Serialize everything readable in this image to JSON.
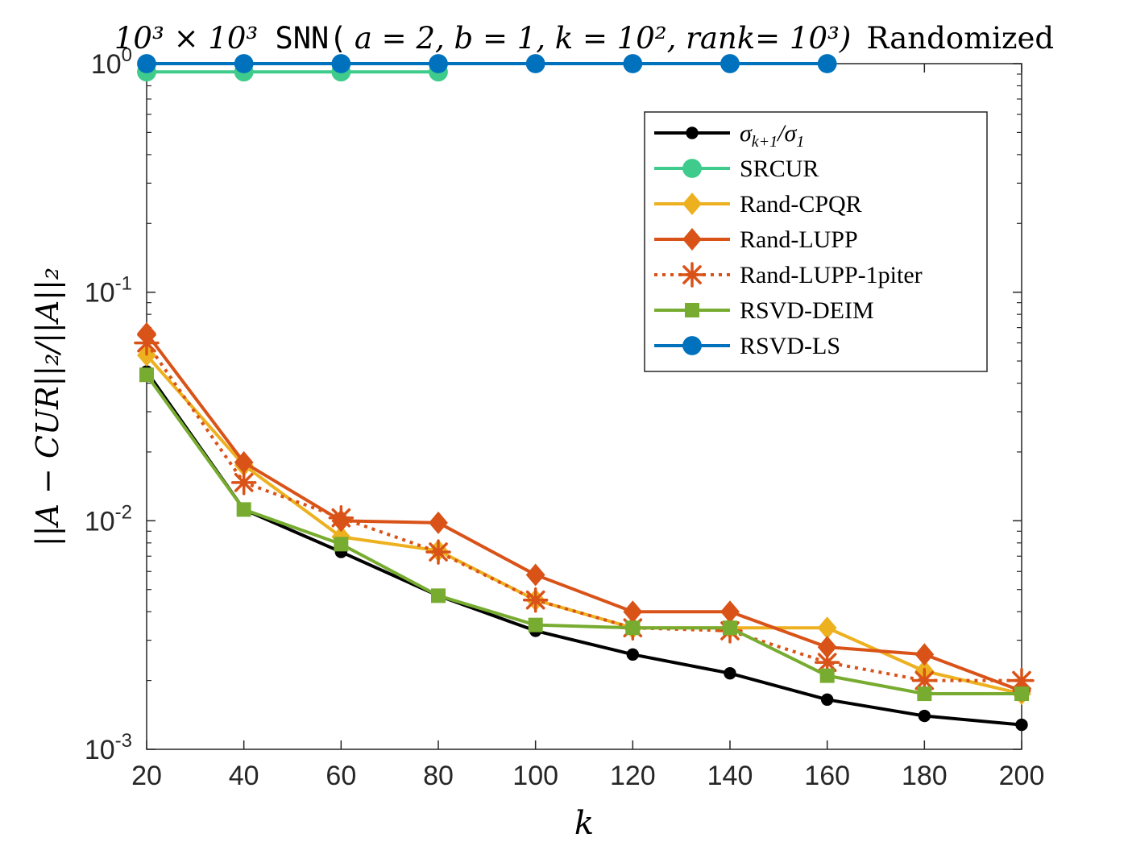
{
  "chart_data": {
    "type": "line",
    "title": {
      "prefix_math": "10³ × 10³",
      "function_name": "SNN(",
      "args_math": "a = 2, b = 1, k = 10², rank= 10³)",
      "suffix": "Randomized"
    },
    "xlabel": "k",
    "ylabel": "||A − CUR||₂/||A||₂",
    "y_scale": "log",
    "xlim": [
      20,
      200
    ],
    "ylim": [
      0.001,
      1
    ],
    "xticks": [
      "20",
      "40",
      "60",
      "80",
      "100",
      "120",
      "140",
      "160",
      "180",
      "200"
    ],
    "yticks": [
      {
        "base": "10",
        "exp": "0",
        "value": 1
      },
      {
        "base": "10",
        "exp": "-1",
        "value": 0.1
      },
      {
        "base": "10",
        "exp": "-2",
        "value": 0.01
      },
      {
        "base": "10",
        "exp": "-3",
        "value": 0.001
      }
    ],
    "x": [
      20,
      40,
      60,
      80,
      100,
      120,
      140,
      160,
      180,
      200
    ],
    "legend_position": "top-right",
    "grid": false,
    "series": [
      {
        "name": "σ_{k+1}/σ_1",
        "color": "#000000",
        "marker": "dot",
        "dash": "solid",
        "values": [
          0.045,
          0.0112,
          0.0073,
          0.0047,
          0.0033,
          0.0026,
          0.00215,
          0.00165,
          0.0014,
          0.00128
        ]
      },
      {
        "name": "SRCUR",
        "color": "#3fcb8b",
        "marker": "circle",
        "dash": "solid",
        "values": [
          0.92,
          0.92,
          0.92,
          0.92,
          null,
          null,
          null,
          null,
          null,
          null
        ]
      },
      {
        "name": "Rand-CPQR",
        "color": "#edb120",
        "marker": "diamond",
        "dash": "solid",
        "values": [
          0.053,
          0.0175,
          0.0085,
          0.0074,
          0.0045,
          0.0034,
          0.0034,
          0.0034,
          0.0022,
          0.00175
        ]
      },
      {
        "name": "Rand-LUPP",
        "color": "#d95319",
        "marker": "diamond",
        "dash": "solid",
        "values": [
          0.066,
          0.018,
          0.01,
          0.0098,
          0.0058,
          0.004,
          0.004,
          0.0028,
          0.0026,
          0.0018
        ]
      },
      {
        "name": "Rand-LUPP-1piter",
        "color": "#d95319",
        "marker": "asterisk",
        "dash": "dotted",
        "values": [
          0.06,
          0.0147,
          0.0103,
          0.0073,
          0.0045,
          0.0034,
          0.0033,
          0.0024,
          0.002,
          0.002
        ]
      },
      {
        "name": "RSVD-DEIM",
        "color": "#77ac30",
        "marker": "square",
        "dash": "solid",
        "values": [
          0.0435,
          0.0112,
          0.0079,
          0.0047,
          0.0035,
          0.0034,
          0.0034,
          0.0021,
          0.00175,
          0.00175
        ]
      },
      {
        "name": "RSVD-LS",
        "color": "#0072bd",
        "marker": "circle",
        "dash": "solid",
        "values": [
          1,
          1,
          1,
          1,
          1,
          1,
          1,
          1,
          null,
          null
        ]
      }
    ]
  }
}
